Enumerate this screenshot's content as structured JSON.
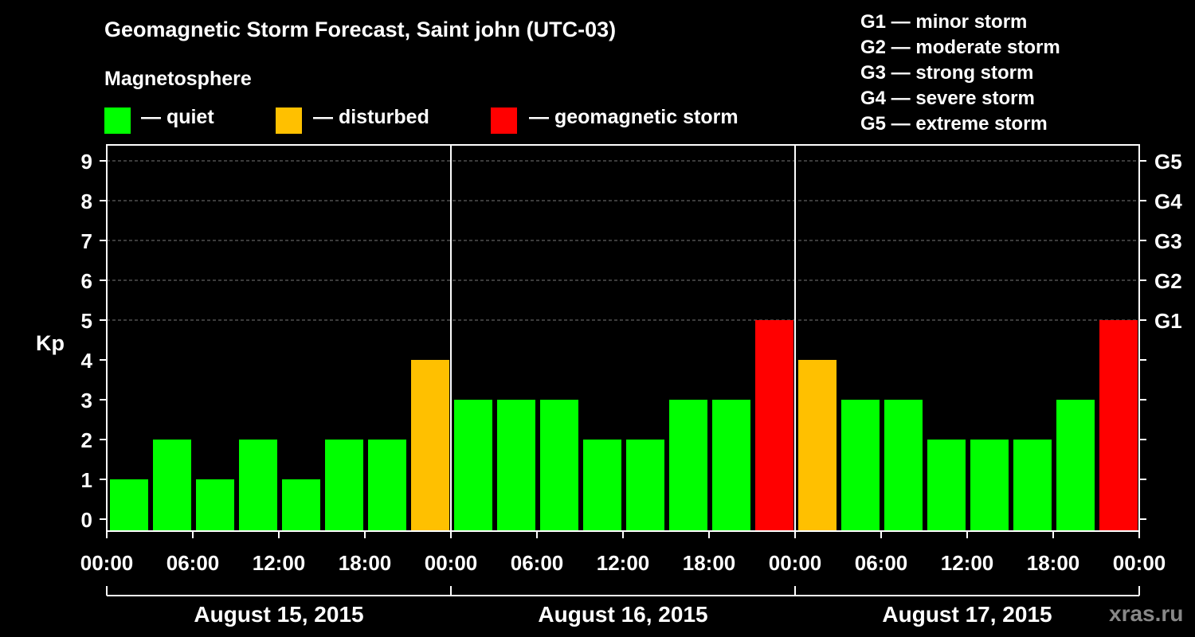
{
  "header": {
    "title": "Geomagnetic Storm Forecast, Saint john (UTC-03)",
    "magnetosphere_label": "Magnetosphere"
  },
  "legend": [
    {
      "label": "— quiet",
      "color": "#00ff00"
    },
    {
      "label": "— disturbed",
      "color": "#ffc000"
    },
    {
      "label": "— geomagnetic storm",
      "color": "#ff0000"
    }
  ],
  "g_scale": [
    "G1 — minor storm",
    "G2 — moderate storm",
    "G3 — strong storm",
    "G4 — severe storm",
    "G5 — extreme storm"
  ],
  "watermark": "xras.ru",
  "chart_data": {
    "type": "bar",
    "title": "Geomagnetic Storm Forecast, Saint john (UTC-03)",
    "ylabel": "Kp",
    "ylim": [
      0,
      9
    ],
    "yticks": [
      "0",
      "1",
      "2",
      "3",
      "4",
      "5",
      "6",
      "7",
      "8",
      "9"
    ],
    "y2ticks": [
      {
        "kp": 5,
        "label": "G1"
      },
      {
        "kp": 6,
        "label": "G2"
      },
      {
        "kp": 7,
        "label": "G3"
      },
      {
        "kp": 8,
        "label": "G4"
      },
      {
        "kp": 9,
        "label": "G5"
      }
    ],
    "xtick_labels": [
      "00:00",
      "06:00",
      "12:00",
      "18:00",
      "00:00",
      "06:00",
      "12:00",
      "18:00",
      "00:00",
      "06:00",
      "12:00",
      "18:00",
      "00:00"
    ],
    "days": [
      "August 15, 2015",
      "August 16, 2015",
      "August 17, 2015"
    ],
    "values": [
      1,
      2,
      1,
      2,
      1,
      2,
      2,
      4,
      3,
      3,
      3,
      2,
      2,
      3,
      3,
      5,
      4,
      3,
      3,
      2,
      2,
      2,
      3,
      5
    ],
    "colors": {
      "quiet": "#00ff00",
      "disturbed": "#ffc000",
      "storm": "#ff0000"
    },
    "grid": true
  }
}
